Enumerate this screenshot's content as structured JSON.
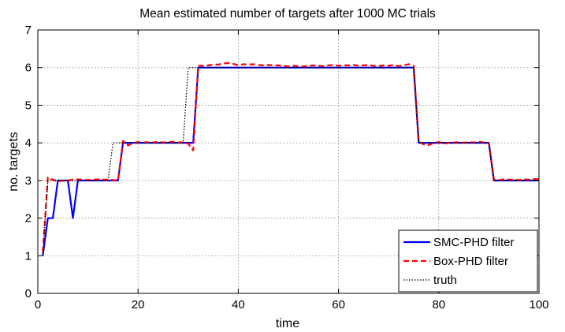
{
  "chart_data": {
    "type": "line",
    "title": "Mean estimated number of targets after 1000 MC trials",
    "xlabel": "time",
    "ylabel": "no. targets",
    "xlim": [
      0,
      100
    ],
    "ylim": [
      0,
      7
    ],
    "xticks": [
      0,
      20,
      40,
      60,
      80,
      100
    ],
    "yticks": [
      0,
      1,
      2,
      3,
      4,
      5,
      6,
      7
    ],
    "grid": true,
    "legend_position": "bottom-right",
    "series": [
      {
        "name": "SMC-PHD filter",
        "color": "#0000ff",
        "style": "solid",
        "x": [
          1,
          2,
          3,
          4,
          5,
          6,
          7,
          8,
          9,
          10,
          11,
          12,
          13,
          14,
          15,
          16,
          17,
          18,
          19,
          20,
          21,
          22,
          23,
          24,
          25,
          26,
          27,
          28,
          29,
          30,
          31,
          32,
          33,
          34,
          35,
          36,
          37,
          38,
          39,
          40,
          41,
          42,
          43,
          44,
          45,
          46,
          47,
          48,
          49,
          50,
          51,
          52,
          53,
          54,
          55,
          56,
          57,
          58,
          59,
          60,
          61,
          62,
          63,
          64,
          65,
          66,
          67,
          68,
          69,
          70,
          71,
          72,
          73,
          74,
          75,
          76,
          77,
          78,
          79,
          80,
          81,
          82,
          83,
          84,
          85,
          86,
          87,
          88,
          89,
          90,
          91,
          92,
          93,
          94,
          95,
          96,
          97,
          98,
          99,
          100
        ],
        "values": [
          1,
          2,
          2,
          3,
          3,
          3,
          2,
          3,
          3,
          3,
          3,
          3,
          3,
          3,
          3,
          3,
          4,
          4,
          4,
          4,
          4,
          4,
          4,
          4,
          4,
          4,
          4,
          4,
          4,
          4,
          4,
          6,
          6,
          6,
          6,
          6,
          6,
          6,
          6,
          6,
          6,
          6,
          6,
          6,
          6,
          6,
          6,
          6,
          6,
          6,
          6,
          6,
          6,
          6,
          6,
          6,
          6,
          6,
          6,
          6,
          6,
          6,
          6,
          6,
          6,
          6,
          6,
          6,
          6,
          6,
          6,
          6,
          6,
          6,
          6,
          4,
          4,
          4,
          4,
          4,
          4,
          4,
          4,
          4,
          4,
          4,
          4,
          4,
          4,
          4,
          3,
          3,
          3,
          3,
          3,
          3,
          3,
          3,
          3,
          3
        ]
      },
      {
        "name": "Box-PHD filter",
        "color": "#ff0000",
        "style": "dashed",
        "x": [
          1,
          2,
          3,
          4,
          5,
          6,
          7,
          8,
          9,
          10,
          11,
          12,
          13,
          14,
          15,
          16,
          17,
          18,
          19,
          20,
          21,
          22,
          23,
          24,
          25,
          26,
          27,
          28,
          29,
          30,
          31,
          32,
          33,
          34,
          35,
          36,
          37,
          38,
          39,
          40,
          41,
          42,
          43,
          44,
          45,
          46,
          47,
          48,
          49,
          50,
          51,
          52,
          53,
          54,
          55,
          56,
          57,
          58,
          59,
          60,
          61,
          62,
          63,
          64,
          65,
          66,
          67,
          68,
          69,
          70,
          71,
          72,
          73,
          74,
          75,
          76,
          77,
          78,
          79,
          80,
          81,
          82,
          83,
          84,
          85,
          86,
          87,
          88,
          89,
          90,
          91,
          92,
          93,
          94,
          95,
          96,
          97,
          98,
          99,
          100
        ],
        "values": [
          1.1,
          3.08,
          3.02,
          2.98,
          2.99,
          3.0,
          3.02,
          3.03,
          3.02,
          3.01,
          3.02,
          3.03,
          3.02,
          3.02,
          3.01,
          3.0,
          4.05,
          3.93,
          4.0,
          4.02,
          4.01,
          4.02,
          4.01,
          4.03,
          4.01,
          4.02,
          4.03,
          4.01,
          4.02,
          3.98,
          3.8,
          6.05,
          6.05,
          6.06,
          6.08,
          6.08,
          6.11,
          6.12,
          6.1,
          6.06,
          6.09,
          6.08,
          6.09,
          6.07,
          6.06,
          6.07,
          6.06,
          6.06,
          6.05,
          6.03,
          6.05,
          6.04,
          6.03,
          6.05,
          6.06,
          6.05,
          6.04,
          6.06,
          6.07,
          6.05,
          6.06,
          6.06,
          6.07,
          6.05,
          6.06,
          6.07,
          6.05,
          6.04,
          6.06,
          6.05,
          6.07,
          6.04,
          6.06,
          6.09,
          6.05,
          4.03,
          3.96,
          3.94,
          4.0,
          4.02,
          3.98,
          4.0,
          4.01,
          4.02,
          4.0,
          4.02,
          4.01,
          4.03,
          4.01,
          4.0,
          3.02,
          3.01,
          3.03,
          3.02,
          3.02,
          3.01,
          3.03,
          3.02,
          3.04,
          3.03
        ]
      },
      {
        "name": "truth",
        "color": "#000000",
        "style": "dotted",
        "x": [
          1,
          2,
          3,
          4,
          5,
          6,
          7,
          8,
          9,
          10,
          11,
          12,
          13,
          14,
          15,
          16,
          17,
          18,
          19,
          20,
          21,
          22,
          23,
          24,
          25,
          26,
          27,
          28,
          29,
          30,
          31,
          32,
          33,
          34,
          35,
          36,
          37,
          38,
          39,
          40,
          41,
          42,
          43,
          44,
          45,
          46,
          47,
          48,
          49,
          50,
          51,
          52,
          53,
          54,
          55,
          56,
          57,
          58,
          59,
          60,
          61,
          62,
          63,
          64,
          65,
          66,
          67,
          68,
          69,
          70,
          71,
          72,
          73,
          74,
          75,
          76,
          77,
          78,
          79,
          80,
          81,
          82,
          83,
          84,
          85,
          86,
          87,
          88,
          89,
          90,
          91,
          92,
          93,
          94,
          95,
          96,
          97,
          98,
          99,
          100
        ],
        "values": [
          1,
          3,
          3,
          3,
          3,
          3,
          3,
          3,
          3,
          3,
          3,
          3,
          3,
          3,
          4,
          4,
          4,
          4,
          4,
          4,
          4,
          4,
          4,
          4,
          4,
          4,
          4,
          4,
          4,
          6,
          6,
          6,
          6,
          6,
          6,
          6,
          6,
          6,
          6,
          6,
          6,
          6,
          6,
          6,
          6,
          6,
          6,
          6,
          6,
          6,
          6,
          6,
          6,
          6,
          6,
          6,
          6,
          6,
          6,
          6,
          6,
          6,
          6,
          6,
          6,
          6,
          6,
          6,
          6,
          6,
          6,
          6,
          6,
          6,
          6,
          4,
          4,
          4,
          4,
          4,
          4,
          4,
          4,
          4,
          4,
          4,
          4,
          4,
          4,
          4,
          3,
          3,
          3,
          3,
          3,
          3,
          3,
          3,
          3,
          3
        ]
      }
    ]
  }
}
